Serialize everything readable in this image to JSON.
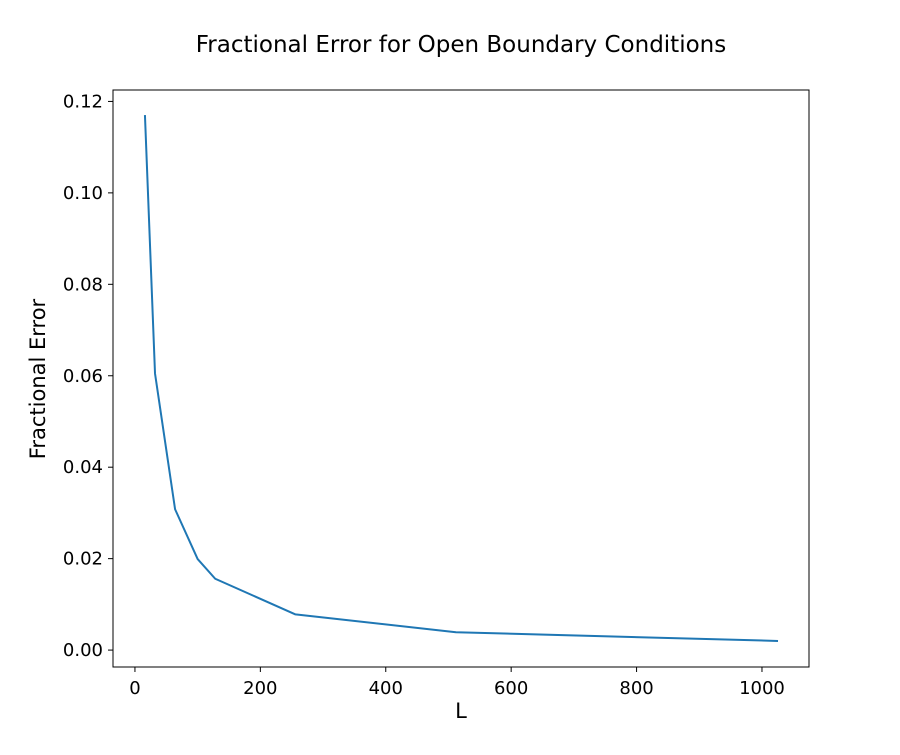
{
  "chart_data": {
    "type": "line",
    "title": "Fractional Error for Open Boundary Conditions",
    "xlabel": "L",
    "ylabel": "Fractional Error",
    "xlim": [
      -35,
      1075
    ],
    "ylim": [
      -0.0037,
      0.1225
    ],
    "xticks": [
      0,
      200,
      400,
      600,
      800,
      1000
    ],
    "xtick_labels": [
      "0",
      "200",
      "400",
      "600",
      "800",
      "1000"
    ],
    "yticks": [
      0.0,
      0.02,
      0.04,
      0.06,
      0.08,
      0.1,
      0.12
    ],
    "ytick_labels": [
      "0.00",
      "0.02",
      "0.04",
      "0.06",
      "0.08",
      "0.10",
      "0.12"
    ],
    "grid": false,
    "series": [
      {
        "color": "#1f77b4",
        "x": [
          16,
          32,
          64,
          100,
          128,
          256,
          512,
          1024
        ],
        "y": [
          0.1168,
          0.0605,
          0.0308,
          0.0199,
          0.0156,
          0.0078,
          0.0039,
          0.002
        ]
      }
    ]
  }
}
